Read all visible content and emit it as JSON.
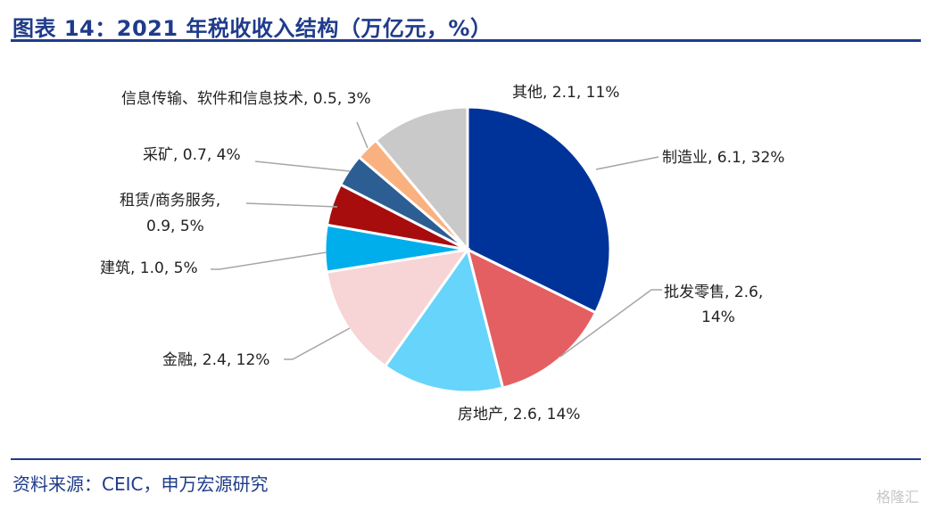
{
  "header": {
    "title": "图表 14：2021 年税收收入结构（万亿元，%）"
  },
  "footer": {
    "source": "资料来源：CEIC，申万宏源研究",
    "watermark": "格隆汇"
  },
  "chart_data": {
    "type": "pie",
    "title": "2021 年税收收入结构（万亿元，%）",
    "slices": [
      {
        "name": "制造业",
        "value": 6.1,
        "pct": 32,
        "color": "#003399",
        "label": "制造业, 6.1, 32%"
      },
      {
        "name": "批发零售",
        "value": 2.6,
        "pct": 14,
        "color": "#e45f62",
        "label": "批发零售, 2.6,",
        "label2": "14%"
      },
      {
        "name": "房地产",
        "value": 2.6,
        "pct": 14,
        "color": "#66d4fb",
        "label": "房地产, 2.6, 14%"
      },
      {
        "name": "金融",
        "value": 2.4,
        "pct": 12,
        "color": "#f7d4d5",
        "label": "金融, 2.4, 12%"
      },
      {
        "name": "建筑",
        "value": 1.0,
        "pct": 5,
        "color": "#00aeec",
        "label": "建筑, 1.0, 5%"
      },
      {
        "name": "租赁/商务服务",
        "value": 0.9,
        "pct": 5,
        "color": "#a80d0d",
        "label": "租赁/商务服务,",
        "label2": "0.9, 5%"
      },
      {
        "name": "采矿",
        "value": 0.7,
        "pct": 4,
        "color": "#2c5e94",
        "label": "采矿, 0.7, 4%"
      },
      {
        "name": "信息传输、软件和信息技术",
        "value": 0.5,
        "pct": 3,
        "color": "#f9b27f",
        "label": "信息传输、软件和信息技术, 0.5, 3%"
      },
      {
        "name": "其他",
        "value": 2.1,
        "pct": 11,
        "color": "#c9c9c9",
        "label": "其他, 2.1, 11%"
      }
    ]
  }
}
